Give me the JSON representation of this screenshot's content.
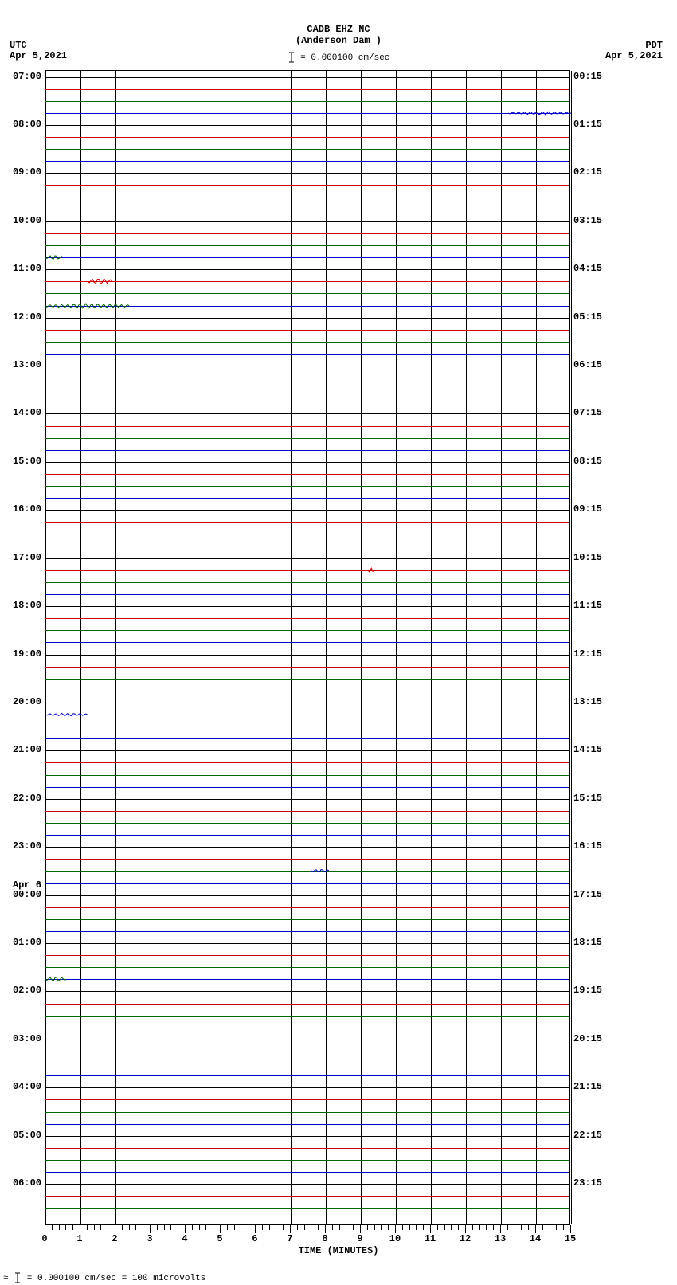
{
  "header": {
    "station": "CADB EHZ NC",
    "location": "(Anderson Dam )",
    "scale_text": " = 0.000100 cm/sec"
  },
  "left_tz": "UTC",
  "left_date": "Apr  5,2021",
  "right_tz": "PDT",
  "right_date": "Apr  5,2021",
  "footer_text": " = 0.000100 cm/sec =    100 microvolts",
  "x_axis": {
    "title": "TIME (MINUTES)",
    "min": 0,
    "max": 15,
    "major_step": 1,
    "minor_per_major": 5
  },
  "plot": {
    "rows": 96,
    "trace_colors": [
      "#000000",
      "#cc0000",
      "#006600",
      "#0000cc"
    ],
    "grid_color": "#000000",
    "background": "#ffffff"
  },
  "left_labels": [
    {
      "row": 0,
      "text": "07:00"
    },
    {
      "row": 4,
      "text": "08:00"
    },
    {
      "row": 8,
      "text": "09:00"
    },
    {
      "row": 12,
      "text": "10:00"
    },
    {
      "row": 16,
      "text": "11:00"
    },
    {
      "row": 20,
      "text": "12:00"
    },
    {
      "row": 24,
      "text": "13:00"
    },
    {
      "row": 28,
      "text": "14:00"
    },
    {
      "row": 32,
      "text": "15:00"
    },
    {
      "row": 36,
      "text": "16:00"
    },
    {
      "row": 40,
      "text": "17:00"
    },
    {
      "row": 44,
      "text": "18:00"
    },
    {
      "row": 48,
      "text": "19:00"
    },
    {
      "row": 52,
      "text": "20:00"
    },
    {
      "row": 56,
      "text": "21:00"
    },
    {
      "row": 60,
      "text": "22:00"
    },
    {
      "row": 64,
      "text": "23:00"
    },
    {
      "row": 68,
      "text": "00:00",
      "date_above": "Apr  6"
    },
    {
      "row": 72,
      "text": "01:00"
    },
    {
      "row": 76,
      "text": "02:00"
    },
    {
      "row": 80,
      "text": "03:00"
    },
    {
      "row": 84,
      "text": "04:00"
    },
    {
      "row": 88,
      "text": "05:00"
    },
    {
      "row": 92,
      "text": "06:00"
    }
  ],
  "right_labels": [
    {
      "row": 0,
      "text": "00:15"
    },
    {
      "row": 4,
      "text": "01:15"
    },
    {
      "row": 8,
      "text": "02:15"
    },
    {
      "row": 12,
      "text": "03:15"
    },
    {
      "row": 16,
      "text": "04:15"
    },
    {
      "row": 20,
      "text": "05:15"
    },
    {
      "row": 24,
      "text": "06:15"
    },
    {
      "row": 28,
      "text": "07:15"
    },
    {
      "row": 32,
      "text": "08:15"
    },
    {
      "row": 36,
      "text": "09:15"
    },
    {
      "row": 40,
      "text": "10:15"
    },
    {
      "row": 44,
      "text": "11:15"
    },
    {
      "row": 48,
      "text": "12:15"
    },
    {
      "row": 52,
      "text": "13:15"
    },
    {
      "row": 56,
      "text": "14:15"
    },
    {
      "row": 60,
      "text": "15:15"
    },
    {
      "row": 64,
      "text": "16:15"
    },
    {
      "row": 68,
      "text": "17:15"
    },
    {
      "row": 72,
      "text": "18:15"
    },
    {
      "row": 76,
      "text": "19:15"
    },
    {
      "row": 80,
      "text": "20:15"
    },
    {
      "row": 84,
      "text": "21:15"
    },
    {
      "row": 88,
      "text": "22:15"
    },
    {
      "row": 92,
      "text": "23:15"
    }
  ],
  "events": [
    {
      "row": 3,
      "x_start": 13.2,
      "x_end": 15.0,
      "color": "#0000cc",
      "amp": 2
    },
    {
      "row": 15,
      "x_start": 0.0,
      "x_end": 0.5,
      "color": "#006600",
      "amp": 3
    },
    {
      "row": 17,
      "x_start": 1.2,
      "x_end": 1.9,
      "color": "#cc0000",
      "amp": 4
    },
    {
      "row": 19,
      "x_start": 0.0,
      "x_end": 2.4,
      "color": "#006600",
      "amp": 3
    },
    {
      "row": 41,
      "x_start": 9.2,
      "x_end": 9.4,
      "color": "#cc0000",
      "amp": 3
    },
    {
      "row": 53,
      "x_start": 0.0,
      "x_end": 1.2,
      "color": "#0000cc",
      "amp": 2
    },
    {
      "row": 66,
      "x_start": 7.6,
      "x_end": 8.1,
      "color": "#0000cc",
      "amp": 2
    },
    {
      "row": 75,
      "x_start": 0.0,
      "x_end": 0.6,
      "color": "#006600",
      "amp": 3
    }
  ]
}
